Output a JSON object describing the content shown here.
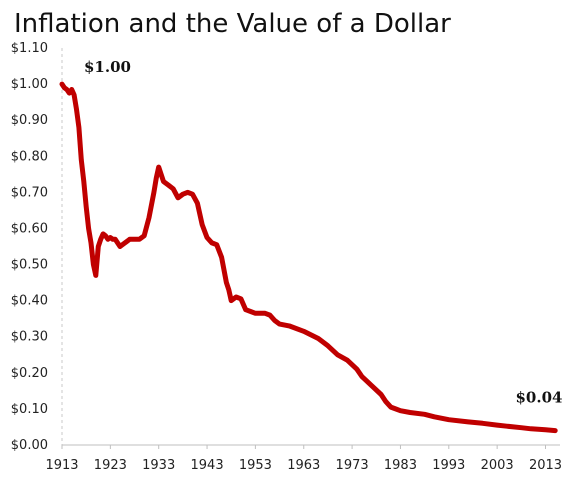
{
  "chart_data": {
    "type": "line",
    "title": "Inflation and the Value of a Dollar",
    "xlim": [
      1913,
      2016
    ],
    "ylim": [
      0,
      1.1
    ],
    "yticks": [
      0.0,
      0.1,
      0.2,
      0.3,
      0.4,
      0.5,
      0.6,
      0.7,
      0.8,
      0.9,
      1.0,
      1.1
    ],
    "ytick_labels": [
      "$0.00",
      "$0.10",
      "$0.20",
      "$0.30",
      "$0.40",
      "$0.50",
      "$0.60",
      "$0.70",
      "$0.80",
      "$0.90",
      "$1.00",
      "$1.10"
    ],
    "xticks": [
      1913,
      1923,
      1933,
      1943,
      1953,
      1963,
      1973,
      1983,
      1993,
      2003,
      2013
    ],
    "xtick_labels": [
      "1913",
      "1923",
      "1933",
      "1943",
      "1953",
      "1963",
      "1973",
      "1983",
      "1993",
      "2003",
      "2013"
    ],
    "grid": false,
    "color": "#c00000",
    "series": [
      {
        "x": [
          1913,
          1913.5,
          1914,
          1914.5,
          1915,
          1915.5,
          1916,
          1916.5,
          1917,
          1917.5,
          1918,
          1918.5,
          1919,
          1919.5,
          1920,
          1920.5,
          1921,
          1921.5,
          1922,
          1922.5,
          1923,
          1923.5,
          1924,
          1924.5,
          1925,
          1926,
          1927,
          1928,
          1929,
          1930,
          1931,
          1932,
          1932.5,
          1933,
          1933.5,
          1934,
          1935,
          1936,
          1937,
          1938,
          1939,
          1940,
          1941,
          1942,
          1943,
          1944,
          1945,
          1946,
          1947,
          1947.5,
          1948,
          1949,
          1950,
          1951,
          1952,
          1953,
          1954,
          1955,
          1956,
          1957,
          1958,
          1960,
          1963,
          1966,
          1968,
          1970,
          1972,
          1974,
          1975,
          1977,
          1979,
          1980,
          1981,
          1982,
          1983,
          1985,
          1988,
          1990,
          1993,
          1997,
          2000,
          2003,
          2005,
          2008,
          2010,
          2013,
          2015
        ],
        "values": [
          1.0,
          0.99,
          0.985,
          0.975,
          0.985,
          0.97,
          0.93,
          0.88,
          0.79,
          0.73,
          0.66,
          0.6,
          0.56,
          0.5,
          0.47,
          0.55,
          0.57,
          0.585,
          0.58,
          0.57,
          0.575,
          0.57,
          0.57,
          0.56,
          0.55,
          0.56,
          0.57,
          0.57,
          0.57,
          0.58,
          0.63,
          0.7,
          0.74,
          0.77,
          0.75,
          0.73,
          0.72,
          0.71,
          0.685,
          0.695,
          0.7,
          0.695,
          0.67,
          0.61,
          0.575,
          0.56,
          0.555,
          0.52,
          0.45,
          0.43,
          0.4,
          0.41,
          0.405,
          0.375,
          0.37,
          0.365,
          0.365,
          0.365,
          0.36,
          0.345,
          0.335,
          0.33,
          0.315,
          0.295,
          0.275,
          0.25,
          0.235,
          0.21,
          0.19,
          0.165,
          0.14,
          0.12,
          0.105,
          0.1,
          0.095,
          0.09,
          0.085,
          0.078,
          0.07,
          0.064,
          0.06,
          0.055,
          0.052,
          0.048,
          0.045,
          0.042,
          0.04
        ]
      }
    ],
    "annotations": [
      {
        "text": "$1.00",
        "x": 1913,
        "y": 1.0
      },
      {
        "text": "$0.04",
        "x": 2013,
        "y": 0.04
      }
    ]
  }
}
